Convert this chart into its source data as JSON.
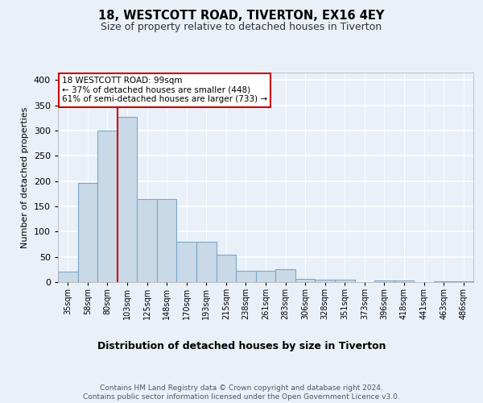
{
  "title1": "18, WESTCOTT ROAD, TIVERTON, EX16 4EY",
  "title2": "Size of property relative to detached houses in Tiverton",
  "xlabel": "Distribution of detached houses by size in Tiverton",
  "ylabel": "Number of detached properties",
  "footer": "Contains HM Land Registry data © Crown copyright and database right 2024.\nContains public sector information licensed under the Open Government Licence v3.0.",
  "categories": [
    "35sqm",
    "58sqm",
    "80sqm",
    "103sqm",
    "125sqm",
    "148sqm",
    "170sqm",
    "193sqm",
    "215sqm",
    "238sqm",
    "261sqm",
    "283sqm",
    "306sqm",
    "328sqm",
    "351sqm",
    "373sqm",
    "396sqm",
    "418sqm",
    "441sqm",
    "463sqm",
    "486sqm"
  ],
  "values": [
    20,
    197,
    300,
    327,
    165,
    165,
    80,
    80,
    55,
    22,
    22,
    25,
    7,
    5,
    5,
    0,
    3,
    3,
    0,
    2,
    1
  ],
  "bar_color": "#c9d9e8",
  "bar_edge_color": "#7aa8c8",
  "property_label": "18 WESTCOTT ROAD: 99sqm",
  "pct_smaller": "37% of detached houses are smaller (448)",
  "pct_larger": "61% of semi-detached houses are larger (733)",
  "annotation_box_color": "#ffffff",
  "annotation_box_edge": "#cc0000",
  "vline_color": "#cc0000",
  "ylim": [
    0,
    415
  ],
  "yticks": [
    0,
    50,
    100,
    150,
    200,
    250,
    300,
    350,
    400
  ],
  "background_color": "#eaf0f8"
}
